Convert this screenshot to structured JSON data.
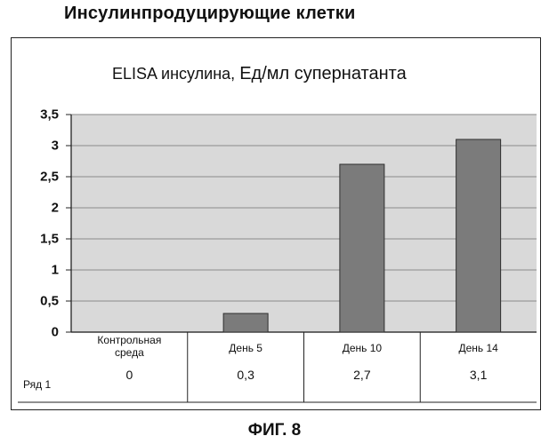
{
  "page": {
    "title": "Инсулинпродуцирующие клетки",
    "caption": "ФИГ. 8"
  },
  "chart_data": {
    "type": "bar",
    "title": "ELISA инсулина",
    "title_suffix": ",",
    "title_units": "Ед/мл супернатанта",
    "categories": [
      "Контрольная среда",
      "День 5",
      "День 10",
      "День 14"
    ],
    "category_lines": [
      [
        "Контрольная",
        "среда"
      ],
      [
        "День 5"
      ],
      [
        "День 10"
      ],
      [
        "День 14"
      ]
    ],
    "series": [
      {
        "name": "Ряд 1",
        "values": [
          0,
          0.3,
          2.7,
          3.1
        ],
        "labels": [
          "0",
          "0,3",
          "2,7",
          "3,1"
        ]
      }
    ],
    "ylim": [
      0,
      3.5
    ],
    "yticks": [
      "0",
      "0,5",
      "1",
      "1,5",
      "2",
      "2,5",
      "3",
      "3,5"
    ],
    "grid": true,
    "legend": "data-table",
    "colors": {
      "plot_background": "#d9d9d9",
      "bar_fill": "#7b7b7b",
      "bar_edge": "#2f2f2f",
      "grid": "#9c9c9c"
    }
  }
}
